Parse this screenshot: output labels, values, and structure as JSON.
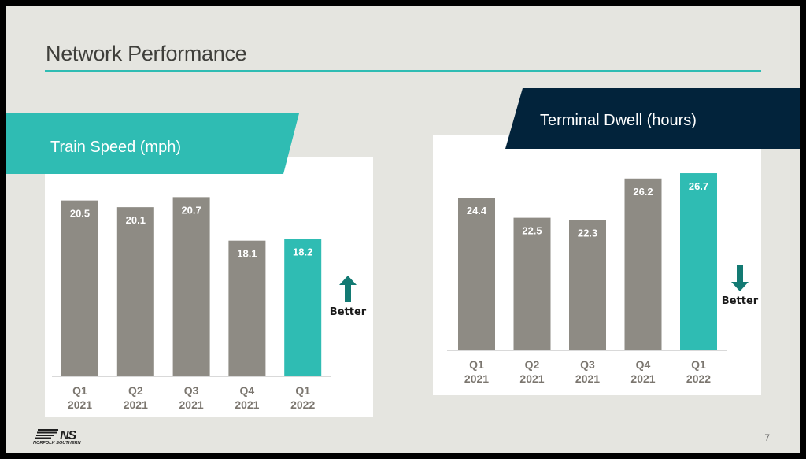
{
  "slide": {
    "title": "Network Performance",
    "page_number": "7",
    "logo_text": "NORFOLK SOUTHERN",
    "logo_mark": "NS"
  },
  "colors": {
    "accent_teal": "#2fbcb3",
    "navy": "#02233b",
    "bar_gray": "#8e8b84",
    "arrow_teal": "#137a73"
  },
  "better_label": "Better",
  "chart_data": [
    {
      "type": "bar",
      "title": "Train Speed (mph)",
      "categories": [
        "Q1\n2021",
        "Q2\n2021",
        "Q3\n2021",
        "Q4\n2021",
        "Q1\n2022"
      ],
      "category_lines": [
        [
          "Q1",
          "2021"
        ],
        [
          "Q2",
          "2021"
        ],
        [
          "Q3",
          "2021"
        ],
        [
          "Q4",
          "2021"
        ],
        [
          "Q1",
          "2022"
        ]
      ],
      "values": [
        20.5,
        20.1,
        20.7,
        18.1,
        18.2
      ],
      "labels": [
        "20.5",
        "20.1",
        "20.7",
        "18.1",
        "18.2"
      ],
      "highlight_index": 4,
      "ylim": [
        10,
        21
      ],
      "xlabel": "",
      "ylabel": "",
      "grid": false,
      "better_direction": "up",
      "better_icon": "arrow-up-icon"
    },
    {
      "type": "bar",
      "title": "Terminal Dwell (hours)",
      "categories": [
        "Q1\n2021",
        "Q2\n2021",
        "Q3\n2021",
        "Q4\n2021",
        "Q1\n2022"
      ],
      "category_lines": [
        [
          "Q1",
          "2021"
        ],
        [
          "Q2",
          "2021"
        ],
        [
          "Q3",
          "2021"
        ],
        [
          "Q4",
          "2021"
        ],
        [
          "Q1",
          "2022"
        ]
      ],
      "values": [
        24.4,
        22.5,
        22.3,
        26.2,
        26.7
      ],
      "labels": [
        "24.4",
        "22.5",
        "22.3",
        "26.2",
        "26.7"
      ],
      "highlight_index": 4,
      "ylim": [
        10,
        27
      ],
      "xlabel": "",
      "ylabel": "",
      "grid": false,
      "better_direction": "down",
      "better_icon": "arrow-down-icon"
    }
  ]
}
